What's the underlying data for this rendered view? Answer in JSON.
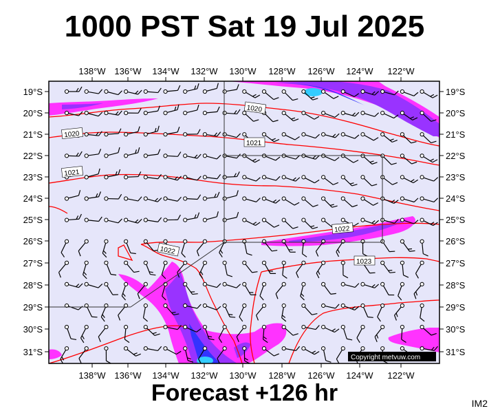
{
  "header": {
    "title": "1000 PST Sat 19 Jul 2025"
  },
  "footer": {
    "forecast": "Forecast +126 hr",
    "image_id": "IM2"
  },
  "map": {
    "lon_labels": [
      "138°W",
      "136°W",
      "134°W",
      "132°W",
      "130°W",
      "128°W",
      "126°W",
      "124°W",
      "122°W"
    ],
    "lat_labels": [
      "19°S",
      "20°S",
      "21°S",
      "22°S",
      "23°S",
      "24°S",
      "25°S",
      "26°S",
      "27°S",
      "28°S",
      "29°S",
      "30°S",
      "31°S"
    ],
    "isobar_labels": [
      "1020",
      "1020",
      "1021",
      "1021",
      "1022",
      "1022",
      "1023"
    ],
    "copyright": "Copyright metvuw.com",
    "colors": {
      "ocean": "#e6e6fa",
      "isobar": "#ff0000",
      "rain_light": "#ff33ff",
      "rain_mid": "#9933ff",
      "rain_heavy": "#3333ff",
      "rain_core": "#33ccff",
      "frame": "#000000"
    }
  }
}
